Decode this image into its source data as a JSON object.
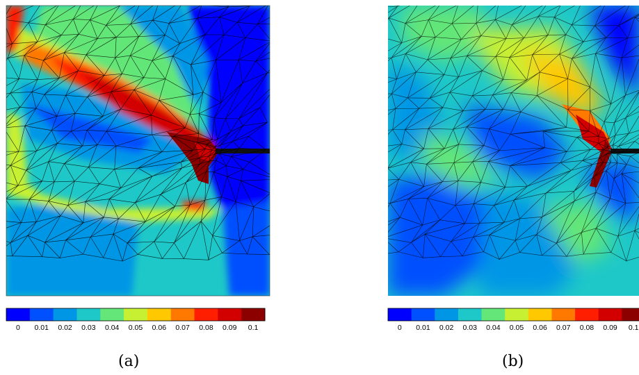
{
  "figure": {
    "panels": [
      {
        "caption": "(a)"
      },
      {
        "caption": "(b)"
      }
    ]
  },
  "colorbar": {
    "ticks": [
      "0",
      "0.01",
      "0.02",
      "0.03",
      "0.04",
      "0.05",
      "0.06",
      "0.07",
      "0.08",
      "0.09",
      "0.1"
    ],
    "colors": [
      "#0000ff",
      "#0050ff",
      "#0096e6",
      "#1ec8c8",
      "#64e678",
      "#c8f032",
      "#ffc800",
      "#ff7800",
      "#ff1e00",
      "#d20000",
      "#8c0000"
    ]
  }
}
